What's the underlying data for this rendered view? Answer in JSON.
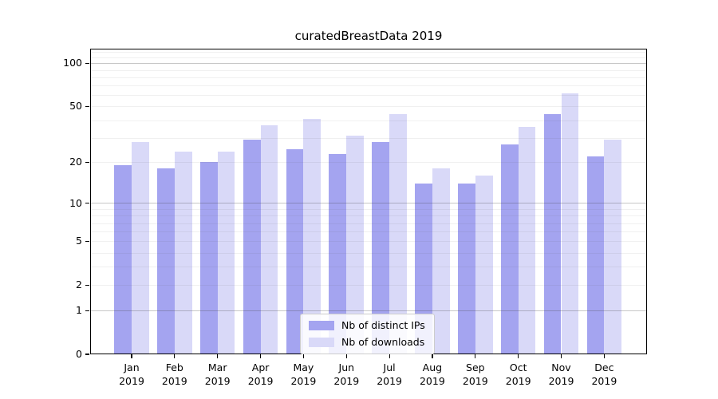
{
  "title": "curatedBreastData 2019",
  "colors": {
    "distinct_ips": "#a4a4f0",
    "downloads": "#d9d9f8",
    "grid_major": "#c6c6c6",
    "grid_minor": "#ededed",
    "axis": "#000000",
    "legend_border": "#cccccc"
  },
  "chart_data": {
    "type": "bar",
    "title": "curatedBreastData 2019",
    "categories": [
      "Jan 2019",
      "Feb 2019",
      "Mar 2019",
      "Apr 2019",
      "May 2019",
      "Jun 2019",
      "Jul 2019",
      "Aug 2019",
      "Sep 2019",
      "Oct 2019",
      "Nov 2019",
      "Dec 2019"
    ],
    "series": [
      {
        "name": "Nb of distinct IPs",
        "color": "#a4a4f0",
        "values": [
          19,
          18,
          20,
          29,
          25,
          23,
          28,
          14,
          14,
          27,
          44,
          22
        ]
      },
      {
        "name": "Nb of downloads",
        "color": "#d9d9f8",
        "values": [
          28,
          24,
          24,
          37,
          41,
          31,
          44,
          18,
          16,
          36,
          62,
          29
        ]
      }
    ],
    "xlabel": "",
    "ylabel": "",
    "yscale": "log1p",
    "yticks": [
      0,
      1,
      2,
      5,
      10,
      20,
      50,
      100
    ],
    "ylim": [
      0,
      126
    ],
    "grid_major_at": [
      1,
      10,
      100
    ],
    "grid_minor_at": [
      2,
      3,
      4,
      5,
      6,
      7,
      8,
      9,
      20,
      30,
      40,
      50,
      60,
      70,
      80,
      90,
      110,
      120
    ],
    "legend_position": "lower center"
  }
}
